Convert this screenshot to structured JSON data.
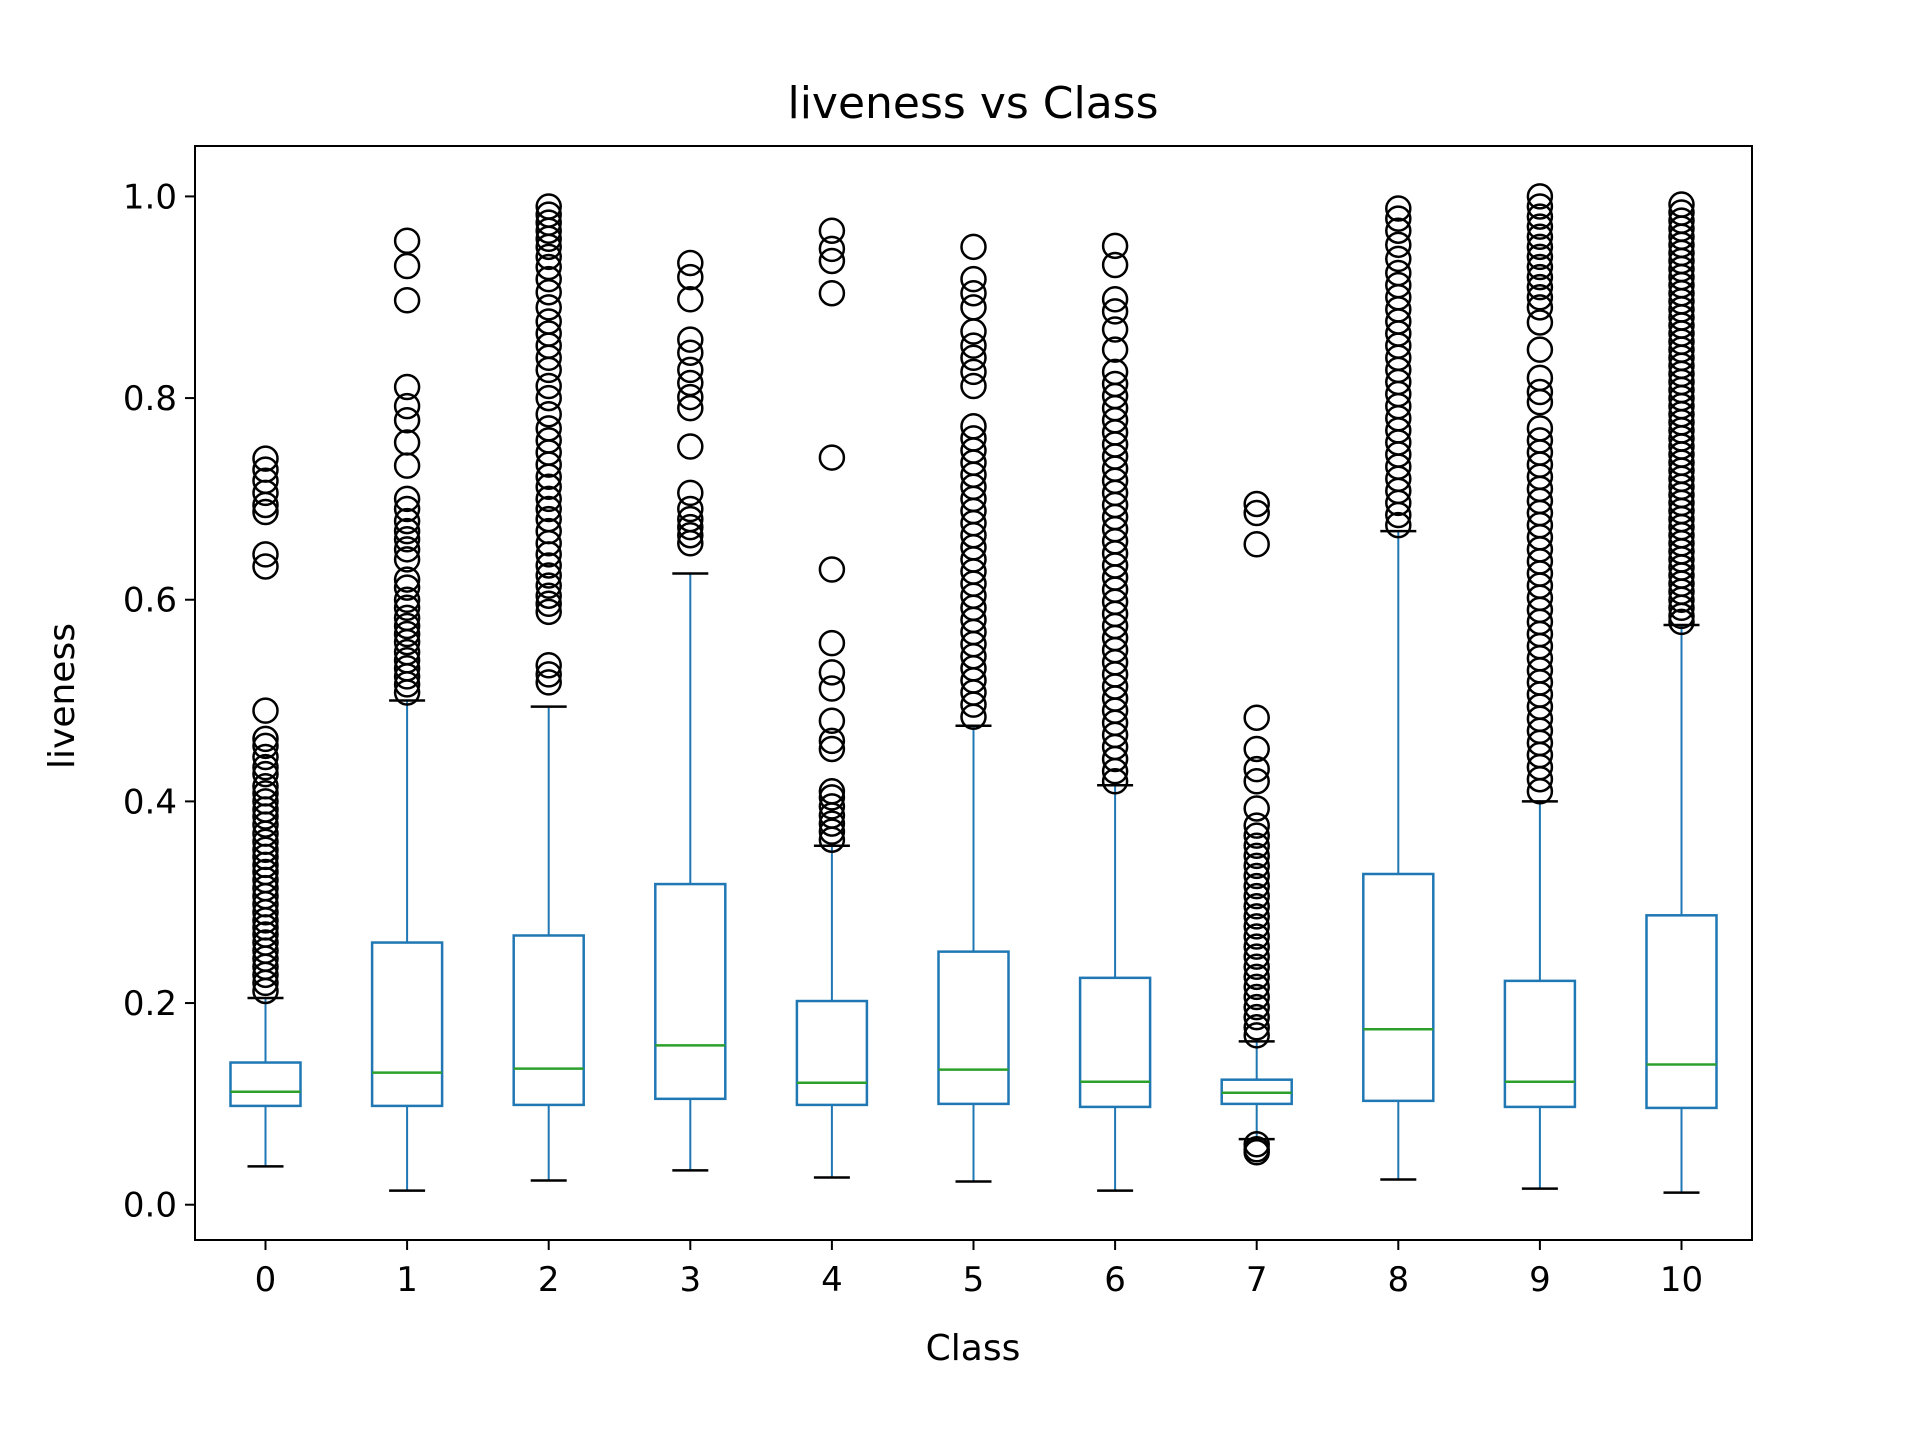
{
  "chart_data": {
    "type": "box",
    "title": "liveness vs Class",
    "xlabel": "Class",
    "ylabel": "liveness",
    "ylim": [
      -0.035,
      1.05
    ],
    "yticks": [
      "0.0",
      "0.2",
      "0.4",
      "0.6",
      "0.8",
      "1.0"
    ],
    "categories": [
      "0",
      "1",
      "2",
      "3",
      "4",
      "5",
      "6",
      "7",
      "8",
      "9",
      "10"
    ],
    "grid": false,
    "legend": "none",
    "colors": {
      "box": "#1f77b4",
      "median": "#2ca02c",
      "whisker_cap": "#000000",
      "flier": "#000000"
    },
    "boxes": [
      {
        "class": "0",
        "whislo": 0.038,
        "q1": 0.098,
        "median": 0.112,
        "q3": 0.141,
        "whishi": 0.205,
        "fliers": [
          0.74,
          0.729,
          0.718,
          0.706,
          0.694,
          0.687,
          0.645,
          0.633,
          0.49,
          0.462,
          0.455,
          0.444,
          0.434,
          0.427,
          0.415,
          0.408,
          0.4,
          0.392,
          0.385,
          0.377,
          0.368,
          0.36,
          0.352,
          0.345,
          0.337,
          0.33,
          0.322,
          0.314,
          0.306,
          0.298,
          0.29,
          0.282,
          0.275,
          0.268,
          0.26,
          0.252,
          0.244,
          0.236,
          0.228,
          0.22,
          0.212
        ]
      },
      {
        "class": "1",
        "whislo": 0.014,
        "q1": 0.098,
        "median": 0.131,
        "q3": 0.26,
        "whishi": 0.5,
        "fliers": [
          0.956,
          0.931,
          0.897,
          0.811,
          0.792,
          0.778,
          0.756,
          0.733,
          0.7,
          0.69,
          0.678,
          0.668,
          0.66,
          0.65,
          0.64,
          0.62,
          0.612,
          0.6,
          0.592,
          0.582,
          0.574,
          0.566,
          0.558,
          0.548,
          0.54,
          0.532,
          0.524,
          0.516,
          0.508
        ]
      },
      {
        "class": "2",
        "whislo": 0.024,
        "q1": 0.099,
        "median": 0.135,
        "q3": 0.267,
        "whishi": 0.494,
        "fliers": [
          0.99,
          0.982,
          0.974,
          0.966,
          0.958,
          0.95,
          0.94,
          0.93,
          0.918,
          0.905,
          0.89,
          0.876,
          0.864,
          0.852,
          0.84,
          0.828,
          0.812,
          0.8,
          0.784,
          0.77,
          0.758,
          0.746,
          0.734,
          0.722,
          0.712,
          0.7,
          0.69,
          0.68,
          0.668,
          0.656,
          0.645,
          0.634,
          0.624,
          0.614,
          0.604,
          0.596,
          0.588,
          0.535,
          0.526,
          0.518
        ]
      },
      {
        "class": "3",
        "whislo": 0.034,
        "q1": 0.105,
        "median": 0.158,
        "q3": 0.318,
        "whishi": 0.626,
        "fliers": [
          0.934,
          0.92,
          0.898,
          0.858,
          0.845,
          0.828,
          0.815,
          0.801,
          0.79,
          0.752,
          0.706,
          0.69,
          0.68,
          0.672,
          0.664,
          0.656
        ]
      },
      {
        "class": "4",
        "whislo": 0.027,
        "q1": 0.099,
        "median": 0.121,
        "q3": 0.202,
        "whishi": 0.356,
        "fliers": [
          0.966,
          0.948,
          0.936,
          0.904,
          0.741,
          0.63,
          0.557,
          0.528,
          0.512,
          0.48,
          0.46,
          0.452,
          0.41,
          0.404,
          0.395,
          0.386,
          0.378,
          0.37,
          0.362
        ]
      },
      {
        "class": "5",
        "whislo": 0.023,
        "q1": 0.1,
        "median": 0.134,
        "q3": 0.251,
        "whishi": 0.475,
        "fliers": [
          0.95,
          0.918,
          0.904,
          0.89,
          0.866,
          0.852,
          0.84,
          0.826,
          0.812,
          0.772,
          0.76,
          0.748,
          0.736,
          0.724,
          0.712,
          0.7,
          0.688,
          0.676,
          0.664,
          0.652,
          0.64,
          0.628,
          0.616,
          0.604,
          0.592,
          0.58,
          0.568,
          0.556,
          0.544,
          0.532,
          0.52,
          0.508,
          0.496,
          0.484
        ]
      },
      {
        "class": "6",
        "whislo": 0.014,
        "q1": 0.097,
        "median": 0.122,
        "q3": 0.225,
        "whishi": 0.416,
        "fliers": [
          0.951,
          0.932,
          0.898,
          0.886,
          0.868,
          0.848,
          0.826,
          0.814,
          0.802,
          0.79,
          0.778,
          0.766,
          0.754,
          0.742,
          0.73,
          0.718,
          0.706,
          0.694,
          0.682,
          0.67,
          0.658,
          0.646,
          0.634,
          0.622,
          0.61,
          0.598,
          0.586,
          0.574,
          0.562,
          0.55,
          0.538,
          0.526,
          0.514,
          0.502,
          0.49,
          0.478,
          0.466,
          0.454,
          0.442,
          0.43,
          0.42
        ]
      },
      {
        "class": "7",
        "whislo": 0.065,
        "q1": 0.1,
        "median": 0.111,
        "q3": 0.124,
        "whishi": 0.162,
        "fliers": [
          0.695,
          0.686,
          0.655,
          0.483,
          0.452,
          0.432,
          0.42,
          0.393,
          0.376,
          0.366,
          0.356,
          0.346,
          0.336,
          0.326,
          0.316,
          0.306,
          0.296,
          0.286,
          0.276,
          0.266,
          0.256,
          0.246,
          0.236,
          0.226,
          0.216,
          0.206,
          0.196,
          0.186,
          0.176,
          0.168,
          0.06,
          0.055,
          0.052
        ]
      },
      {
        "class": "8",
        "whislo": 0.025,
        "q1": 0.103,
        "median": 0.174,
        "q3": 0.328,
        "whishi": 0.668,
        "fliers": [
          0.988,
          0.978,
          0.966,
          0.952,
          0.938,
          0.924,
          0.912,
          0.9,
          0.888,
          0.876,
          0.864,
          0.852,
          0.84,
          0.828,
          0.816,
          0.804,
          0.792,
          0.78,
          0.768,
          0.756,
          0.744,
          0.732,
          0.72,
          0.708,
          0.696,
          0.684,
          0.674
        ]
      },
      {
        "class": "9",
        "whislo": 0.016,
        "q1": 0.097,
        "median": 0.122,
        "q3": 0.222,
        "whishi": 0.4,
        "fliers": [
          1.0,
          0.99,
          0.98,
          0.97,
          0.96,
          0.95,
          0.94,
          0.93,
          0.92,
          0.91,
          0.9,
          0.89,
          0.875,
          0.848,
          0.82,
          0.806,
          0.796,
          0.77,
          0.758,
          0.746,
          0.734,
          0.722,
          0.71,
          0.698,
          0.686,
          0.674,
          0.662,
          0.65,
          0.638,
          0.626,
          0.614,
          0.602,
          0.59,
          0.578,
          0.566,
          0.554,
          0.542,
          0.53,
          0.518,
          0.506,
          0.494,
          0.482,
          0.47,
          0.458,
          0.446,
          0.434,
          0.422,
          0.41
        ]
      },
      {
        "class": "10",
        "whislo": 0.012,
        "q1": 0.096,
        "median": 0.139,
        "q3": 0.287,
        "whishi": 0.575,
        "fliers": [
          0.992,
          0.984,
          0.976,
          0.968,
          0.96,
          0.952,
          0.944,
          0.936,
          0.928,
          0.92,
          0.912,
          0.904,
          0.896,
          0.888,
          0.88,
          0.872,
          0.864,
          0.856,
          0.848,
          0.84,
          0.832,
          0.824,
          0.816,
          0.808,
          0.8,
          0.792,
          0.784,
          0.776,
          0.768,
          0.76,
          0.752,
          0.744,
          0.736,
          0.728,
          0.72,
          0.712,
          0.704,
          0.696,
          0.688,
          0.68,
          0.672,
          0.664,
          0.656,
          0.648,
          0.64,
          0.632,
          0.624,
          0.616,
          0.608,
          0.6,
          0.592,
          0.584,
          0.578
        ]
      }
    ]
  }
}
